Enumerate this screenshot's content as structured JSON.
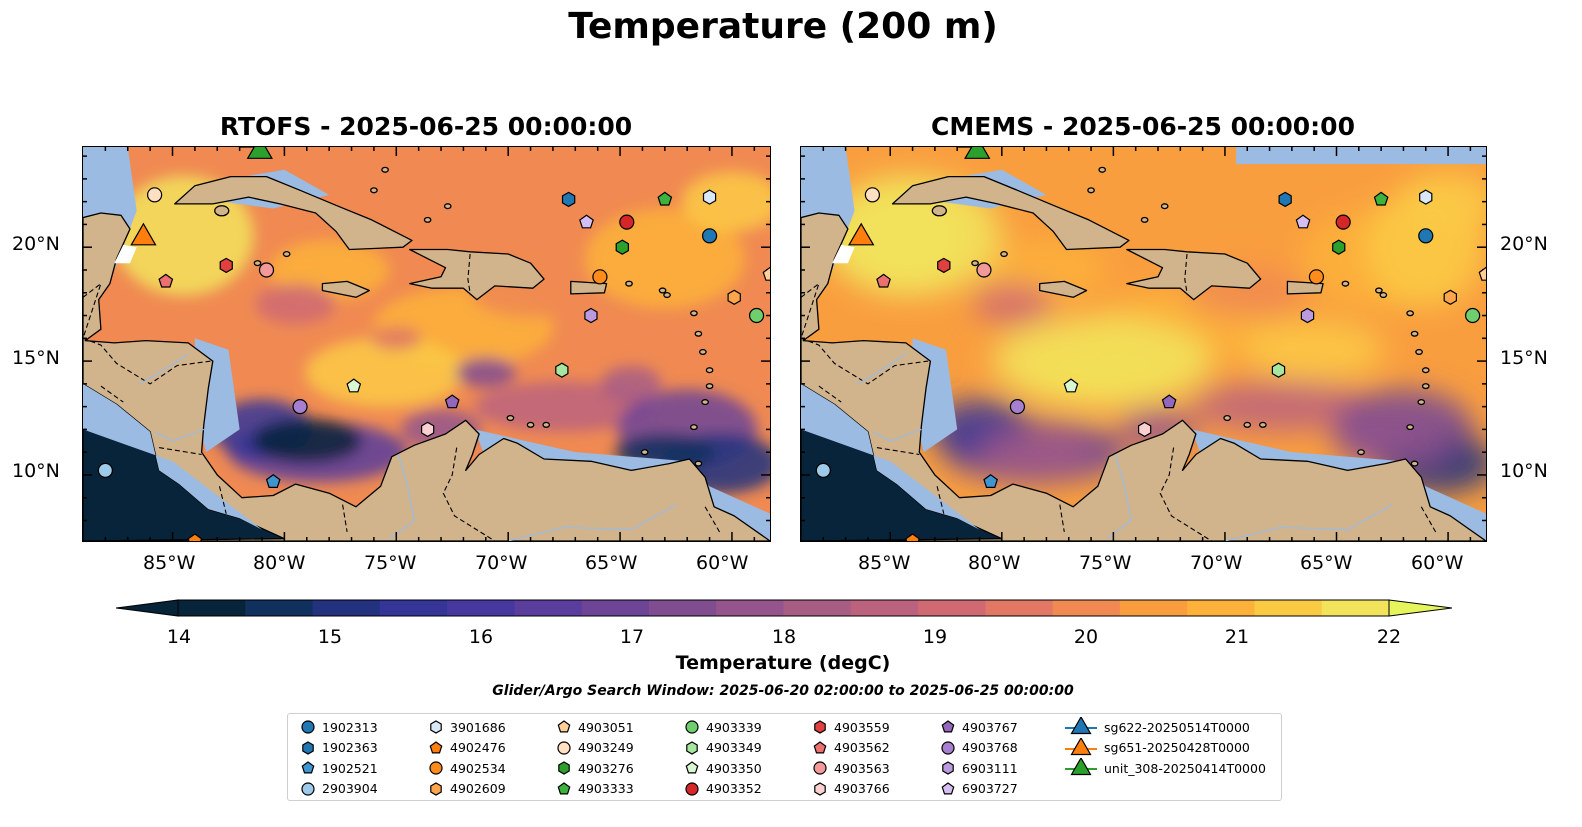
{
  "title": "Temperature (200 m)",
  "panels": [
    {
      "title": "RTOFS - 2025-06-25 00:00:00"
    },
    {
      "title": "CMEMS - 2025-06-25 00:00:00"
    }
  ],
  "axes": {
    "lon_ticks": [
      "85°W",
      "80°W",
      "75°W",
      "70°W",
      "65°W",
      "60°W"
    ],
    "lat_ticks": [
      "20°N",
      "15°N",
      "10°N"
    ],
    "lon_range": [
      -89,
      -58.3
    ],
    "lat_range": [
      7.1,
      24.4
    ]
  },
  "colorbar": {
    "label": "Temperature (degC)",
    "min": 14,
    "max": 22,
    "step": 0.5,
    "ticks": [
      "14",
      "15",
      "16",
      "17",
      "18",
      "19",
      "20",
      "21",
      "22"
    ],
    "colors": [
      "#08243a",
      "#10305e",
      "#22327f",
      "#353598",
      "#46389f",
      "#5a3d9c",
      "#6e4497",
      "#814d91",
      "#94558c",
      "#a85d85",
      "#bb637e",
      "#cf6a73",
      "#e17764",
      "#f08a52",
      "#f99e3f",
      "#fdb13a",
      "#fbca45",
      "#f2e35c"
    ],
    "extend_low": "#062338",
    "extend_high": "#e6f55c"
  },
  "map_colors": {
    "land": "#d2b48c",
    "shelf": "#9bbbe3",
    "coast": "#000000"
  },
  "search_window": "Glider/Argo Search Window: 2025-06-20 02:00:00 to 2025-06-25 00:00:00",
  "legend": [
    {
      "label": "1902313",
      "marker": "circle",
      "color": "#1f77b4"
    },
    {
      "label": "1902363",
      "marker": "hexagon",
      "color": "#1f77b4"
    },
    {
      "label": "1902521",
      "marker": "pentagon",
      "color": "#3f95d0"
    },
    {
      "label": "2903904",
      "marker": "circle",
      "color": "#9ecae9"
    },
    {
      "label": "3901686",
      "marker": "hexagon",
      "color": "#d8e8f6"
    },
    {
      "label": "4902476",
      "marker": "pentagon",
      "color": "#ff7f0e"
    },
    {
      "label": "4902534",
      "marker": "circle",
      "color": "#ff8c1a"
    },
    {
      "label": "4902609",
      "marker": "hexagon",
      "color": "#ffa64d"
    },
    {
      "label": "4903051",
      "marker": "pentagon",
      "color": "#ffcf99"
    },
    {
      "label": "4903249",
      "marker": "circle",
      "color": "#ffe0c2"
    },
    {
      "label": "4903276",
      "marker": "hexagon",
      "color": "#2ca02c"
    },
    {
      "label": "4903333",
      "marker": "pentagon",
      "color": "#3cb33c"
    },
    {
      "label": "4903339",
      "marker": "circle",
      "color": "#6fcf6f"
    },
    {
      "label": "4903349",
      "marker": "hexagon",
      "color": "#a8e6a0"
    },
    {
      "label": "4903350",
      "marker": "pentagon",
      "color": "#d9f7d2"
    },
    {
      "label": "4903352",
      "marker": "circle",
      "color": "#d62728"
    },
    {
      "label": "4903559",
      "marker": "hexagon",
      "color": "#e04040"
    },
    {
      "label": "4903562",
      "marker": "pentagon",
      "color": "#ec7070"
    },
    {
      "label": "4903563",
      "marker": "circle",
      "color": "#f29999"
    },
    {
      "label": "4903766",
      "marker": "hexagon",
      "color": "#fbd0d0"
    },
    {
      "label": "4903767",
      "marker": "pentagon",
      "color": "#9467bd"
    },
    {
      "label": "4903768",
      "marker": "circle",
      "color": "#a77fd0"
    },
    {
      "label": "6903111",
      "marker": "hexagon",
      "color": "#bb9ae0"
    },
    {
      "label": "6903727",
      "marker": "pentagon",
      "color": "#d5bff2"
    },
    {
      "label": "sg622-20250514T0000",
      "marker": "triangle",
      "color": "#1f77b4"
    },
    {
      "label": "sg651-20250428T0000",
      "marker": "triangle",
      "color": "#ff7f0e"
    },
    {
      "label": "unit_308-20250414T0000",
      "marker": "triangle",
      "color": "#2ca02c"
    }
  ],
  "observations": [
    {
      "id": "1902313",
      "lon": -61.0,
      "lat": 20.5
    },
    {
      "id": "1902363",
      "lon": -67.3,
      "lat": 22.1
    },
    {
      "id": "1902521",
      "lon": -80.5,
      "lat": 9.7
    },
    {
      "id": "2903904",
      "lon": -88.0,
      "lat": 10.2
    },
    {
      "id": "3901686",
      "lon": -61.0,
      "lat": 22.2
    },
    {
      "id": "4902476",
      "lon": -84.0,
      "lat": 7.1
    },
    {
      "id": "4902534",
      "lon": -65.9,
      "lat": 18.7
    },
    {
      "id": "4902609",
      "lon": -59.9,
      "lat": 17.8
    },
    {
      "id": "4903051",
      "lon": -58.3,
      "lat": 18.8
    },
    {
      "id": "4903249",
      "lon": -85.8,
      "lat": 22.3
    },
    {
      "id": "4903276",
      "lon": -64.9,
      "lat": 20.0
    },
    {
      "id": "4903333",
      "lon": -63.0,
      "lat": 22.1
    },
    {
      "id": "4903339",
      "lon": -58.9,
      "lat": 17.0
    },
    {
      "id": "4903349",
      "lon": -67.6,
      "lat": 14.6
    },
    {
      "id": "4903350",
      "lon": -76.9,
      "lat": 13.9
    },
    {
      "id": "4903352",
      "lon": -64.7,
      "lat": 21.1
    },
    {
      "id": "4903559",
      "lon": -82.6,
      "lat": 19.2
    },
    {
      "id": "4903562",
      "lon": -85.3,
      "lat": 18.5
    },
    {
      "id": "4903563",
      "lon": -80.8,
      "lat": 19.0
    },
    {
      "id": "4903766",
      "lon": -73.6,
      "lat": 12.0
    },
    {
      "id": "4903767",
      "lon": -72.5,
      "lat": 13.2
    },
    {
      "id": "4903768",
      "lon": -79.3,
      "lat": 13.0
    },
    {
      "id": "6903111",
      "lon": -66.3,
      "lat": 17.0
    },
    {
      "id": "6903727",
      "lon": -66.5,
      "lat": 21.1
    },
    {
      "id": "sg651-20250428T0000",
      "lon": -86.3,
      "lat": 20.5
    },
    {
      "id": "unit_308-20250414T0000",
      "lon": -81.1,
      "lat": 24.3
    }
  ]
}
